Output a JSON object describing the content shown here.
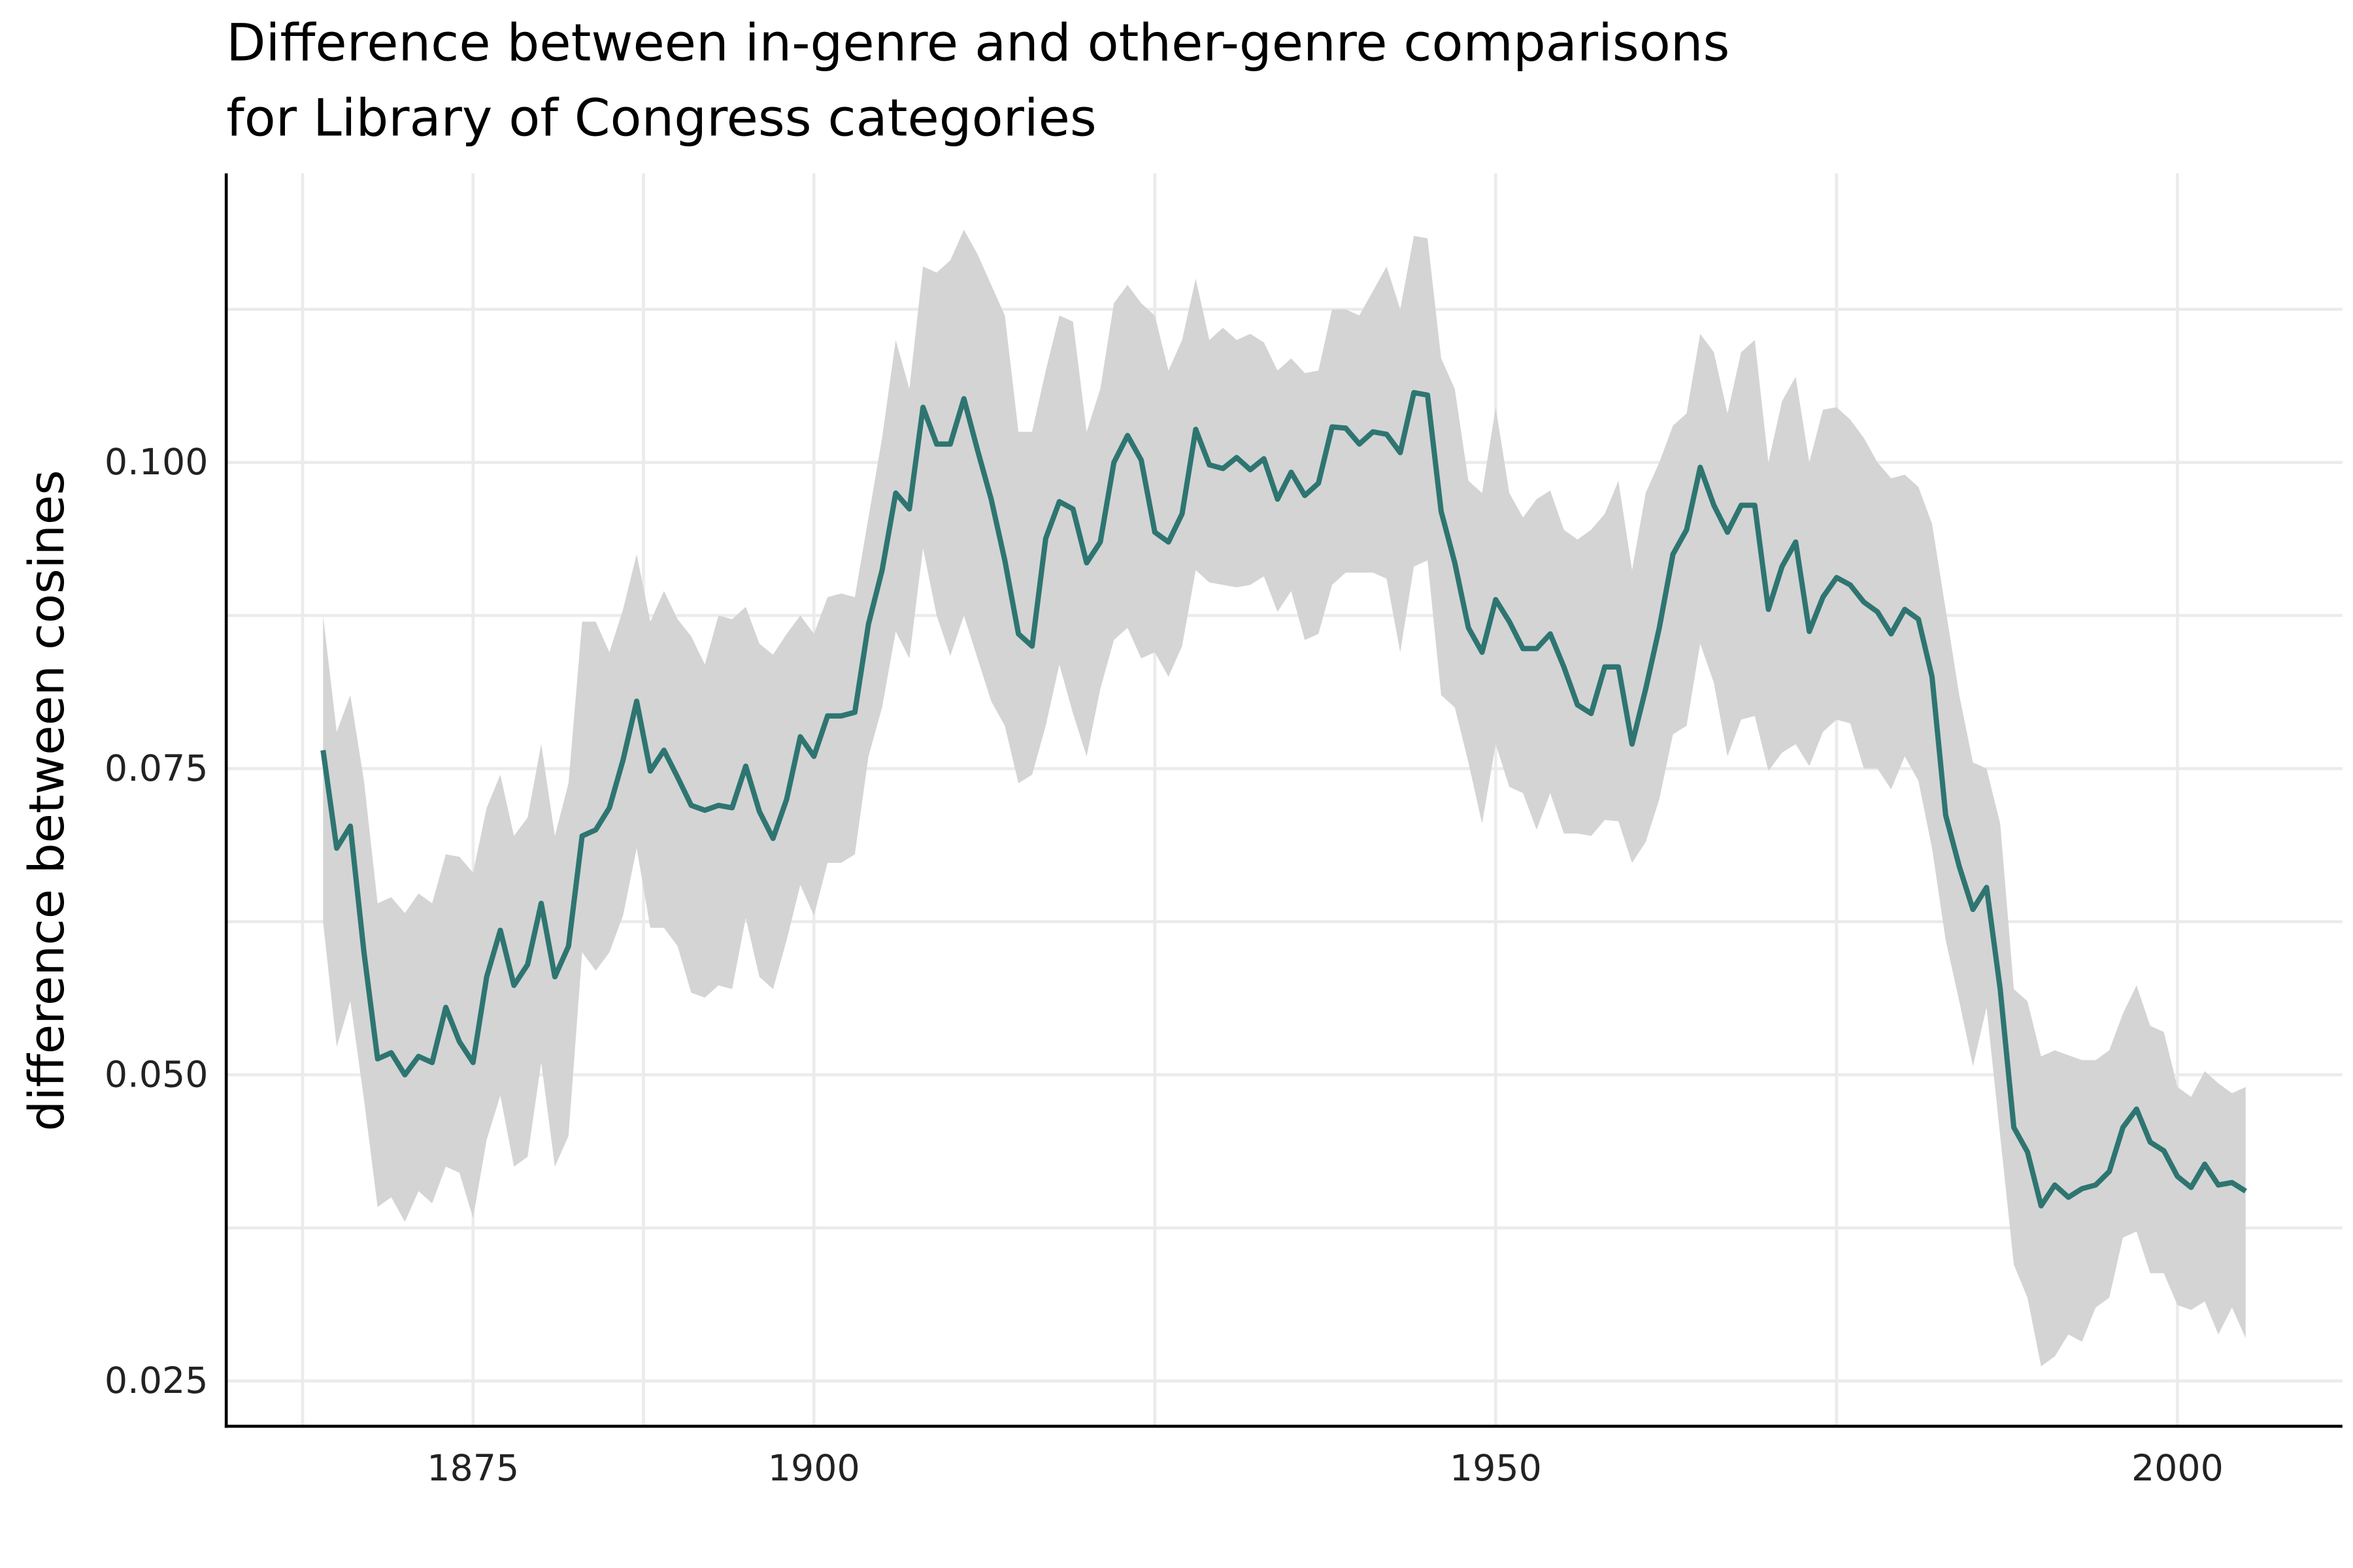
{
  "chart_data": {
    "type": "line",
    "title": [
      "Difference between in-genre and other-genre comparisons",
      "for Library of Congress categories"
    ],
    "y_label": "difference between cosines",
    "xlim": [
      1856.9,
      2012.1
    ],
    "ylim": [
      0.0213,
      0.1236
    ],
    "xticks": [
      1875,
      1900,
      1950,
      2000
    ],
    "xgrid": [
      1862.5,
      1875,
      1887.5,
      1900,
      1925,
      1950,
      1975,
      2000
    ],
    "yticks": [
      {
        "value": 0.025,
        "label": "0.025"
      },
      {
        "value": 0.05,
        "label": "0.050"
      },
      {
        "value": 0.075,
        "label": "0.075"
      },
      {
        "value": 0.1,
        "label": "0.100"
      }
    ],
    "ygrid": [
      0.025,
      0.0375,
      0.05,
      0.0625,
      0.075,
      0.0875,
      0.1,
      0.1125
    ],
    "grid": true,
    "x": [
      1864,
      1865,
      1866,
      1867,
      1868,
      1869,
      1870,
      1871,
      1872,
      1873,
      1874,
      1875,
      1876,
      1877,
      1878,
      1879,
      1880,
      1881,
      1882,
      1883,
      1884,
      1885,
      1886,
      1887,
      1888,
      1889,
      1890,
      1891,
      1892,
      1893,
      1894,
      1895,
      1896,
      1897,
      1898,
      1899,
      1900,
      1901,
      1902,
      1903,
      1904,
      1905,
      1906,
      1907,
      1908,
      1909,
      1910,
      1911,
      1912,
      1913,
      1914,
      1915,
      1916,
      1917,
      1918,
      1919,
      1920,
      1921,
      1922,
      1923,
      1924,
      1925,
      1926,
      1927,
      1928,
      1929,
      1930,
      1931,
      1932,
      1933,
      1934,
      1935,
      1936,
      1937,
      1938,
      1939,
      1940,
      1941,
      1942,
      1943,
      1944,
      1945,
      1946,
      1947,
      1948,
      1949,
      1950,
      1951,
      1952,
      1953,
      1954,
      1955,
      1956,
      1957,
      1958,
      1959,
      1960,
      1961,
      1962,
      1963,
      1964,
      1965,
      1966,
      1967,
      1968,
      1969,
      1970,
      1971,
      1972,
      1973,
      1974,
      1975,
      1976,
      1977,
      1978,
      1979,
      1980,
      1981,
      1982,
      1983,
      1984,
      1985,
      1986,
      1987,
      1988,
      1989,
      1990,
      1991,
      1992,
      1993,
      1994,
      1995,
      1996,
      1997,
      1998,
      1999,
      2000,
      2001,
      2002,
      2003,
      2004,
      2005
    ],
    "series": [
      {
        "color": "#2e7571",
        "band_color": "#d4d4d4",
        "values": [
          0.0765,
          0.0685,
          0.0703,
          0.06,
          0.0513,
          0.0518,
          0.05,
          0.0515,
          0.051,
          0.0555,
          0.0527,
          0.051,
          0.058,
          0.0618,
          0.0573,
          0.059,
          0.064,
          0.058,
          0.0605,
          0.0695,
          0.07,
          0.0718,
          0.0757,
          0.0805,
          0.0748,
          0.0765,
          0.0743,
          0.072,
          0.0716,
          0.072,
          0.0718,
          0.0752,
          0.0715,
          0.0693,
          0.0725,
          0.0776,
          0.076,
          0.0793,
          0.0793,
          0.0796,
          0.0868,
          0.0912,
          0.0975,
          0.0962,
          0.1045,
          0.1015,
          0.1015,
          0.1052,
          0.101,
          0.097,
          0.092,
          0.086,
          0.085,
          0.0938,
          0.0968,
          0.0962,
          0.0918,
          0.0935,
          0.1,
          0.1022,
          0.1002,
          0.0943,
          0.0935,
          0.0958,
          0.1027,
          0.0998,
          0.0995,
          0.1004,
          0.0994,
          0.1003,
          0.097,
          0.0992,
          0.0973,
          0.0983,
          0.1029,
          0.1028,
          0.1015,
          0.1025,
          0.1023,
          0.1008,
          0.1057,
          0.1055,
          0.096,
          0.0918,
          0.0865,
          0.0845,
          0.0888,
          0.087,
          0.0848,
          0.0848,
          0.086,
          0.0833,
          0.0802,
          0.0795,
          0.0833,
          0.0833,
          0.077,
          0.0815,
          0.0865,
          0.0925,
          0.0945,
          0.0996,
          0.0965,
          0.0943,
          0.0965,
          0.0965,
          0.088,
          0.0915,
          0.0935,
          0.0862,
          0.089,
          0.0906,
          0.09,
          0.0886,
          0.0878,
          0.086,
          0.088,
          0.0872,
          0.0825,
          0.0712,
          0.067,
          0.0635,
          0.0653,
          0.057,
          0.0457,
          0.0437,
          0.0393,
          0.041,
          0.04,
          0.0407,
          0.041,
          0.0421,
          0.0457,
          0.0472,
          0.0445,
          0.0438,
          0.0417,
          0.0408,
          0.0427,
          0.041,
          0.0412,
          0.0405
        ],
        "upper": [
          0.0875,
          0.078,
          0.081,
          0.074,
          0.064,
          0.0645,
          0.0632,
          0.0648,
          0.064,
          0.068,
          0.0678,
          0.0665,
          0.0718,
          0.0745,
          0.0695,
          0.071,
          0.077,
          0.0695,
          0.0738,
          0.087,
          0.087,
          0.0845,
          0.088,
          0.0925,
          0.087,
          0.0895,
          0.0872,
          0.0858,
          0.0835,
          0.0875,
          0.0872,
          0.0882,
          0.0852,
          0.0843,
          0.086,
          0.0875,
          0.086,
          0.089,
          0.0893,
          0.089,
          0.0955,
          0.102,
          0.11,
          0.106,
          0.116,
          0.1155,
          0.1165,
          0.119,
          0.117,
          0.1145,
          0.112,
          0.1025,
          0.1025,
          0.1075,
          0.112,
          0.1115,
          0.1025,
          0.106,
          0.113,
          0.1145,
          0.113,
          0.112,
          0.1075,
          0.11,
          0.115,
          0.11,
          0.111,
          0.11,
          0.1105,
          0.1098,
          0.1075,
          0.1085,
          0.1073,
          0.1075,
          0.1125,
          0.1125,
          0.112,
          0.114,
          0.116,
          0.1125,
          0.1185,
          0.1183,
          0.1085,
          0.106,
          0.0985,
          0.0975,
          0.1045,
          0.0975,
          0.0955,
          0.097,
          0.0977,
          0.0945,
          0.0937,
          0.0945,
          0.0958,
          0.0985,
          0.0912,
          0.0975,
          0.1,
          0.103,
          0.104,
          0.1105,
          0.109,
          0.104,
          0.109,
          0.11,
          0.1,
          0.105,
          0.107,
          0.1,
          0.1043,
          0.1045,
          0.1035,
          0.102,
          0.1,
          0.0987,
          0.099,
          0.098,
          0.095,
          0.088,
          0.081,
          0.0755,
          0.075,
          0.0705,
          0.057,
          0.056,
          0.0515,
          0.052,
          0.0516,
          0.0512,
          0.0512,
          0.052,
          0.055,
          0.0573,
          0.054,
          0.0535,
          0.049,
          0.0482,
          0.0503,
          0.0493,
          0.0485,
          0.049
        ],
        "lower": [
          0.0625,
          0.0523,
          0.056,
          0.048,
          0.0392,
          0.04,
          0.038,
          0.0405,
          0.0395,
          0.0425,
          0.042,
          0.0383,
          0.0447,
          0.0483,
          0.0425,
          0.0433,
          0.051,
          0.0425,
          0.045,
          0.06,
          0.0585,
          0.06,
          0.063,
          0.0685,
          0.062,
          0.062,
          0.0605,
          0.0567,
          0.0563,
          0.0573,
          0.057,
          0.0628,
          0.058,
          0.057,
          0.061,
          0.0655,
          0.063,
          0.0673,
          0.0673,
          0.068,
          0.076,
          0.08,
          0.0862,
          0.084,
          0.093,
          0.0875,
          0.0842,
          0.0875,
          0.084,
          0.0805,
          0.0785,
          0.0738,
          0.0745,
          0.0785,
          0.0835,
          0.0795,
          0.076,
          0.0815,
          0.0855,
          0.0865,
          0.084,
          0.0845,
          0.0825,
          0.085,
          0.0912,
          0.0902,
          0.09,
          0.0898,
          0.09,
          0.0907,
          0.0878,
          0.0895,
          0.0855,
          0.086,
          0.09,
          0.091,
          0.091,
          0.091,
          0.0905,
          0.0845,
          0.0915,
          0.092,
          0.081,
          0.08,
          0.0755,
          0.0705,
          0.077,
          0.0735,
          0.073,
          0.07,
          0.073,
          0.0697,
          0.0697,
          0.0695,
          0.0708,
          0.0707,
          0.0673,
          0.069,
          0.0725,
          0.0778,
          0.0785,
          0.0852,
          0.082,
          0.076,
          0.079,
          0.0793,
          0.0748,
          0.0763,
          0.077,
          0.0752,
          0.078,
          0.079,
          0.0787,
          0.075,
          0.075,
          0.0733,
          0.076,
          0.074,
          0.0685,
          0.061,
          0.056,
          0.0507,
          0.0555,
          0.045,
          0.0345,
          0.0318,
          0.0262,
          0.027,
          0.0288,
          0.0282,
          0.031,
          0.0318,
          0.0367,
          0.0372,
          0.0338,
          0.0338,
          0.0312,
          0.0308,
          0.0315,
          0.0288,
          0.031,
          0.0285
        ]
      }
    ]
  }
}
